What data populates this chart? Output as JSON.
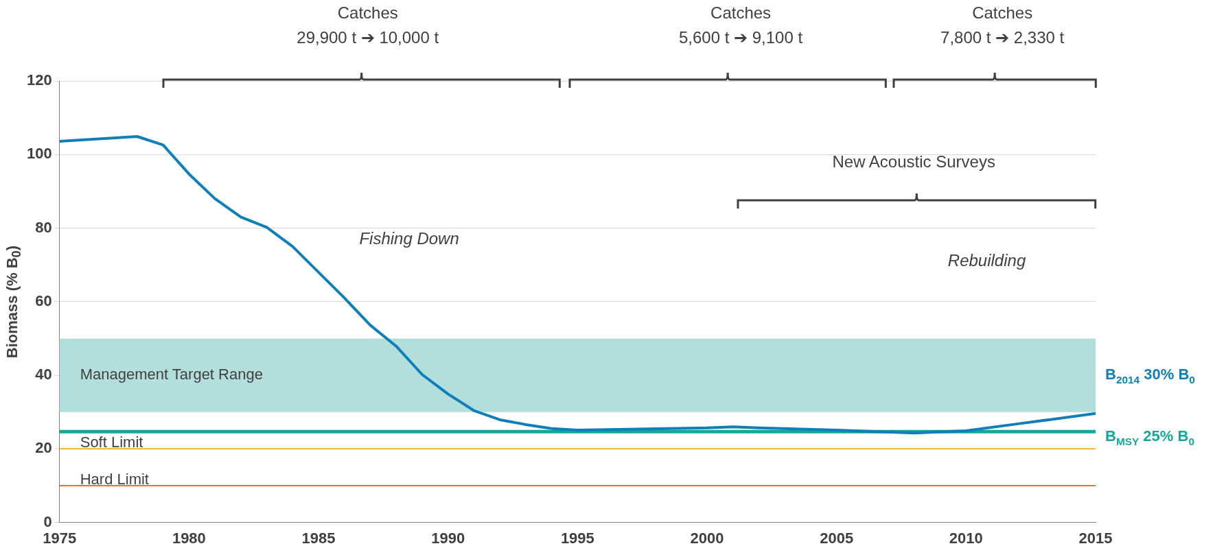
{
  "chart_data": {
    "type": "line",
    "ylabel": "Biomass (% B$_{0}$)",
    "x": [
      1975,
      1978,
      1979,
      1980,
      1981,
      1982,
      1983,
      1984,
      1985,
      1986,
      1987,
      1988,
      1989,
      1990,
      1991,
      1992,
      1993,
      1994,
      1995,
      2000,
      2001,
      2002,
      2005,
      2008,
      2010,
      2012,
      2015
    ],
    "series": [
      {
        "color": "#0e7fb8",
        "values": [
          103.6,
          104.9,
          102.6,
          94.7,
          88,
          83,
          80.2,
          75,
          68,
          61,
          53.6,
          47.9,
          40.2,
          34.9,
          30.4,
          27.9,
          26.6,
          25.5,
          25.1,
          25.7,
          26,
          25.7,
          25.1,
          24.3,
          24.9,
          26.8,
          29.6
        ]
      }
    ],
    "xlim": [
      1975,
      2015
    ],
    "xticks": [
      1975,
      1980,
      1985,
      1990,
      1995,
      2000,
      2005,
      2010,
      2015
    ],
    "ylim": [
      0,
      120
    ],
    "yticks": [
      0,
      20,
      40,
      60,
      80,
      100,
      120
    ],
    "grid": "y",
    "marker": "none",
    "line_style": "solid",
    "bands": [
      {
        "axis": "y",
        "from": 30,
        "to": 50,
        "label": "Management Target Range",
        "color": "#b2dfdb"
      }
    ],
    "ref_lines": [
      {
        "axis": "y",
        "value": 24.7,
        "label": "B$_{MSY}$ 25% B$_{0}$",
        "color": "#11a99b"
      },
      {
        "axis": "y",
        "value": 20,
        "label": "Soft Limit",
        "color": "#f0b323"
      },
      {
        "axis": "y",
        "value": 10,
        "label": "Hard Limit",
        "color": "#f07020"
      }
    ],
    "annotations": [
      "Catches\n29,900 t ➔ 10,000 t",
      "Catches\n5,600 t ➔ 9,100 t",
      "Catches\n7,800 t ➔ 2,330 t",
      "New Acoustic Surveys",
      "Fishing Down",
      "Rebuilding",
      "B$_{2014}$ 30% B$_{0}$"
    ]
  }
}
